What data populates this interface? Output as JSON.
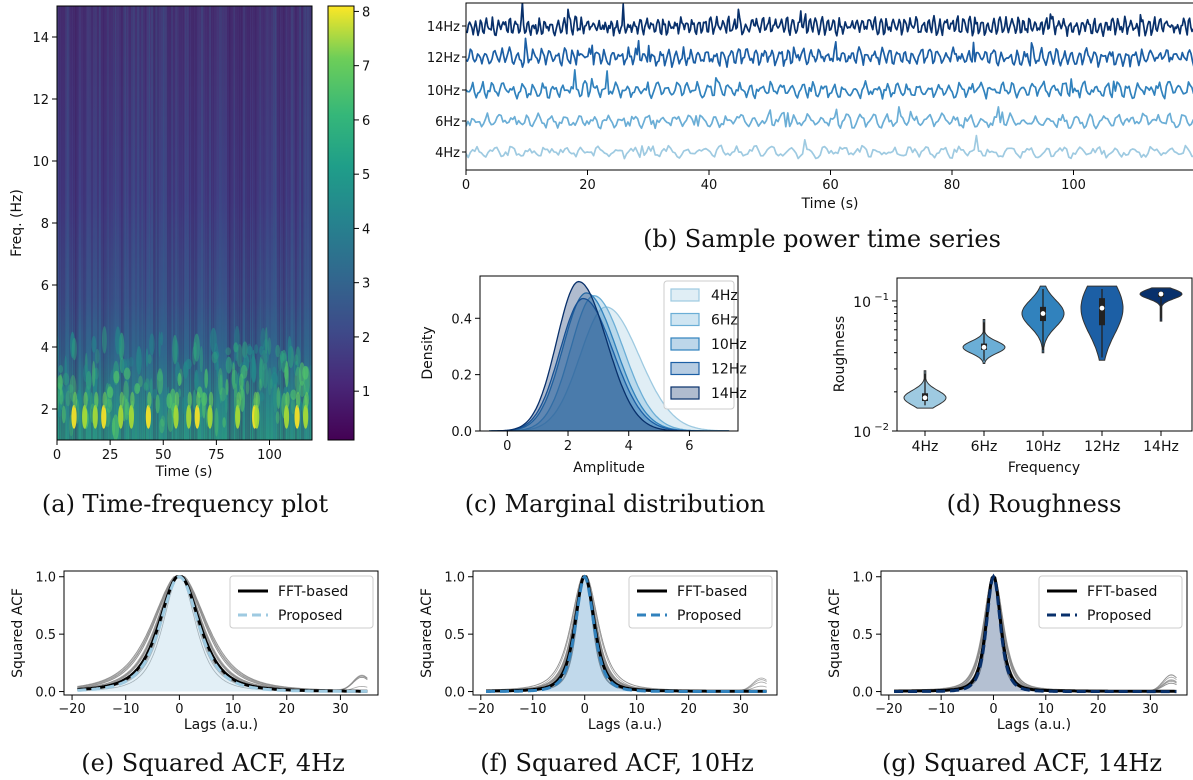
{
  "captions": {
    "a": "(a) Time-frequency plot",
    "b": "(b) Sample power time series",
    "c": "(c) Marginal distribution",
    "d": "(d) Roughness",
    "e": "(e) Squared ACF, 4Hz",
    "f": "(f) Squared ACF, 10Hz",
    "g": "(g) Squared ACF, 14Hz"
  },
  "colors": {
    "c4": "#9ecae1",
    "c6": "#6baed6",
    "c10": "#3182bd",
    "c12": "#1c5fa5",
    "c14": "#08306b",
    "dash4": "#9ecae1",
    "dash10": "#3182bd",
    "dash14": "#08306b"
  },
  "chart_data": [
    {
      "id": "a",
      "type": "heatmap",
      "xlabel": "Time (s)",
      "ylabel": "Freq. (Hz)",
      "xticks": [
        0,
        25,
        50,
        75,
        100
      ],
      "yticks": [
        2,
        4,
        6,
        8,
        10,
        12,
        14
      ],
      "xlim": [
        0,
        120
      ],
      "ylim": [
        1,
        15
      ],
      "colorbar": {
        "ticks": [
          1,
          2,
          3,
          4,
          5,
          6,
          7,
          8
        ],
        "range": [
          0.1,
          8.1
        ],
        "colormap": "viridis"
      },
      "bright_spot_times": [
        8,
        13,
        18,
        22,
        30,
        35,
        43,
        56,
        62,
        66,
        72,
        85,
        93,
        94,
        108,
        113,
        117
      ]
    },
    {
      "id": "b",
      "type": "line",
      "xlabel": "Time (s)",
      "xticks": [
        0,
        20,
        40,
        60,
        80,
        100
      ],
      "xlim": [
        0,
        120
      ],
      "series": [
        {
          "name": "4Hz",
          "color_key": "c4"
        },
        {
          "name": "6Hz",
          "color_key": "c6"
        },
        {
          "name": "10Hz",
          "color_key": "c10"
        },
        {
          "name": "12Hz",
          "color_key": "c12"
        },
        {
          "name": "14Hz",
          "color_key": "c14"
        }
      ]
    },
    {
      "id": "c",
      "type": "area",
      "xlabel": "Amplitude",
      "ylabel": "Density",
      "xticks": [
        0,
        2,
        4,
        6
      ],
      "yticks": [
        "0.0",
        "0.2",
        "0.4"
      ],
      "xlim": [
        -0.9,
        7.6
      ],
      "ylim": [
        0,
        0.55
      ],
      "legend": "top-right",
      "series": [
        {
          "name": "4Hz",
          "mode": 3.25,
          "sd": 0.95,
          "peak": 0.44,
          "color_key": "c4"
        },
        {
          "name": "6Hz",
          "mode": 2.85,
          "sd": 0.85,
          "peak": 0.48,
          "color_key": "c6"
        },
        {
          "name": "10Hz",
          "mode": 2.6,
          "sd": 0.85,
          "peak": 0.49,
          "color_key": "c10"
        },
        {
          "name": "12Hz",
          "mode": 2.5,
          "sd": 0.85,
          "peak": 0.47,
          "color_key": "c12"
        },
        {
          "name": "14Hz",
          "mode": 2.35,
          "sd": 0.8,
          "peak": 0.53,
          "color_key": "c14"
        }
      ]
    },
    {
      "id": "d",
      "type": "violin",
      "xlabel": "Frequency",
      "ylabel": "Roughness",
      "yscale": "log",
      "ytick_labels": [
        {
          "base": "10",
          "exp": "−1",
          "value": 0.1
        },
        {
          "base": "10",
          "exp": "−2",
          "value": 0.01
        }
      ],
      "ylim": [
        0.01,
        0.15
      ],
      "categories": [
        "4Hz",
        "6Hz",
        "10Hz",
        "12Hz",
        "14Hz"
      ],
      "violins": [
        {
          "median": 0.018,
          "q1": 0.017,
          "q3": 0.0195,
          "min": 0.015,
          "max": 0.029,
          "color_key": "c4"
        },
        {
          "median": 0.044,
          "q1": 0.042,
          "q3": 0.047,
          "min": 0.033,
          "max": 0.072,
          "color_key": "c6"
        },
        {
          "median": 0.08,
          "q1": 0.07,
          "q3": 0.09,
          "min": 0.04,
          "max": 0.13,
          "color_key": "c10"
        },
        {
          "median": 0.088,
          "q1": 0.065,
          "q3": 0.105,
          "min": 0.035,
          "max": 0.13,
          "color_key": "c12"
        },
        {
          "median": 0.113,
          "q1": 0.107,
          "q3": 0.117,
          "min": 0.07,
          "max": 0.126,
          "color_key": "c14"
        }
      ]
    },
    {
      "id": "e",
      "type": "line",
      "xlabel": "Lags (a.u.)",
      "ylabel": "Squared ACF",
      "xticks": [
        "−20",
        "−10",
        "0",
        "10",
        "20",
        "30"
      ],
      "yticks": [
        "0.0",
        "0.5",
        "1.0"
      ],
      "xlim": [
        -21.5,
        37
      ],
      "ylim": [
        -0.03,
        1.05
      ],
      "legend": "top-right",
      "width_sigma": 6.5,
      "series": [
        {
          "name": "FFT-based",
          "style": "solid",
          "color": "#000000"
        },
        {
          "name": "Proposed",
          "style": "dashed",
          "color_key": "dash4"
        }
      ]
    },
    {
      "id": "f",
      "type": "line",
      "xlabel": "Lags (a.u.)",
      "ylabel": "Squared ACF",
      "xticks": [
        "−20",
        "−10",
        "0",
        "10",
        "20",
        "30"
      ],
      "yticks": [
        "0.0",
        "0.5",
        "1.0"
      ],
      "xlim": [
        -21.5,
        37
      ],
      "ylim": [
        -0.03,
        1.05
      ],
      "legend": "top-right",
      "width_sigma": 3.2,
      "series": [
        {
          "name": "FFT-based",
          "style": "solid",
          "color": "#000000"
        },
        {
          "name": "Proposed",
          "style": "dashed",
          "color_key": "dash10"
        }
      ]
    },
    {
      "id": "g",
      "type": "line",
      "xlabel": "Lags (a.u.)",
      "ylabel": "Squared ACF",
      "xticks": [
        "−20",
        "−10",
        "0",
        "10",
        "20",
        "30"
      ],
      "yticks": [
        "0.0",
        "0.5",
        "1.0"
      ],
      "xlim": [
        -21.5,
        37
      ],
      "ylim": [
        -0.03,
        1.05
      ],
      "legend": "top-right",
      "width_sigma": 2.4,
      "series": [
        {
          "name": "FFT-based",
          "style": "solid",
          "color": "#000000"
        },
        {
          "name": "Proposed",
          "style": "dashed",
          "color_key": "dash14"
        }
      ]
    }
  ]
}
